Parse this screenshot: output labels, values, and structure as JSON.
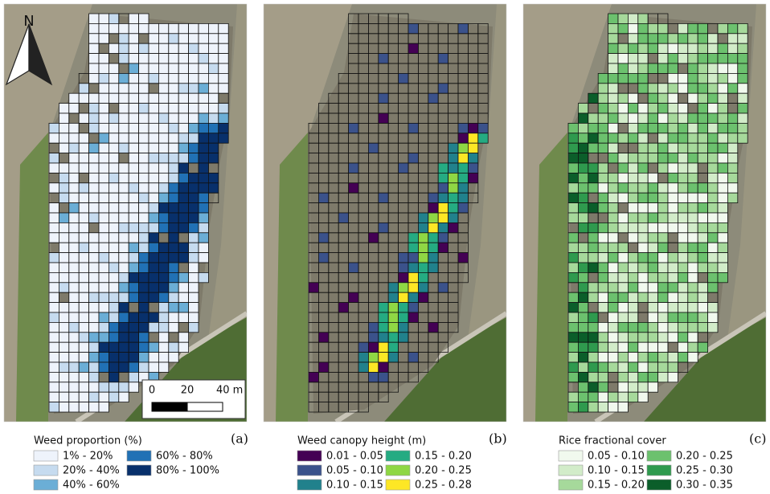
{
  "north_arrow": "N",
  "scale_bar": {
    "labels": [
      "0",
      "20",
      "40 m"
    ]
  },
  "panels": [
    {
      "label": "(a)",
      "legend": {
        "title": "Weed proportion (%)",
        "items": [
          {
            "label": "1% - 20%",
            "color": "#eef3fb"
          },
          {
            "label": "20% - 40%",
            "color": "#c6dbef"
          },
          {
            "label": "40% - 60%",
            "color": "#6baed6"
          },
          {
            "label": "60% - 80%",
            "color": "#2171b5"
          },
          {
            "label": "80% - 100%",
            "color": "#08306b"
          }
        ]
      }
    },
    {
      "label": "(b)",
      "legend": {
        "title": "Weed canopy height (m)",
        "items": [
          {
            "label": "0.01 - 0.05",
            "color": "#440154"
          },
          {
            "label": "0.05 - 0.10",
            "color": "#3b528b"
          },
          {
            "label": "0.10 - 0.15",
            "color": "#21818c"
          },
          {
            "label": "0.15 - 0.20",
            "color": "#25ab82"
          },
          {
            "label": "0.20 - 0.25",
            "color": "#8fd744"
          },
          {
            "label": "0.25 - 0.28",
            "color": "#fde725"
          }
        ]
      }
    },
    {
      "label": "(c)",
      "legend": {
        "title": "Rice fractional cover",
        "items": [
          {
            "label": "0.05 - 0.10",
            "color": "#f1f9ee"
          },
          {
            "label": "0.10 - 0.15",
            "color": "#d2ecc9"
          },
          {
            "label": "0.15 - 0.20",
            "color": "#a6d99b"
          },
          {
            "label": "0.20 - 0.25",
            "color": "#6cc16e"
          },
          {
            "label": "0.25 - 0.30",
            "color": "#2f9a4e"
          },
          {
            "label": "0.30 - 0.35",
            "color": "#0b5e2a"
          }
        ]
      }
    }
  ]
}
